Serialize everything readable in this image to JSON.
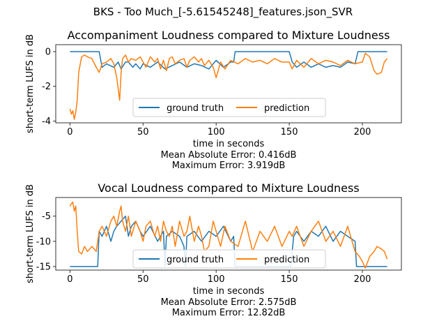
{
  "figure": {
    "suptitle": "BKS - Too Much_[-5.61545248]_features.json_SVR"
  },
  "colors": {
    "ground_truth": "#1f77b4",
    "prediction": "#ff7f0e"
  },
  "chart_data": [
    {
      "type": "line",
      "title": "Accompaniment Loudness compared to Mixture Loudness",
      "xlabel": "time in seconds",
      "ylabel": "short-term LUFS in dB",
      "xlim": [
        -9.7,
        226.7
      ],
      "ylim": [
        -4.1,
        0.4
      ],
      "xticks": [
        0,
        50,
        100,
        150,
        200
      ],
      "yticks": [
        0,
        -2,
        -4
      ],
      "legend": {
        "placement": "lower-center",
        "entries": [
          "ground truth",
          "prediction"
        ]
      },
      "stats": [
        "Mean Absolute Error: 0.416dB",
        "Maximum Error: 3.919dB"
      ],
      "series": [
        {
          "name": "ground truth",
          "color": "#1f77b4",
          "x": [
            0,
            5,
            10,
            15,
            18,
            20,
            22,
            25,
            30,
            33,
            35,
            38,
            40,
            43,
            45,
            48,
            50,
            55,
            60,
            65,
            70,
            75,
            80,
            85,
            90,
            95,
            100,
            105,
            110,
            112,
            113,
            120,
            130,
            140,
            150,
            152,
            155,
            160,
            165,
            170,
            175,
            180,
            185,
            190,
            195,
            197,
            200,
            205,
            210,
            217
          ],
          "y": [
            0,
            0,
            0,
            0,
            0,
            0,
            -0.9,
            -0.7,
            -0.9,
            -0.6,
            -1.0,
            -0.6,
            -0.6,
            -0.9,
            -0.7,
            -1.0,
            -0.7,
            -0.9,
            -0.6,
            -1.0,
            -0.8,
            -0.6,
            -0.9,
            -0.7,
            -0.8,
            -1.0,
            -0.5,
            -0.9,
            -0.6,
            -0.6,
            0,
            0,
            0,
            0,
            0,
            -0.6,
            -0.9,
            -0.6,
            -0.9,
            -0.7,
            -0.9,
            -0.8,
            -0.9,
            -0.6,
            -0.7,
            0,
            0,
            0,
            0,
            0
          ]
        },
        {
          "name": "prediction",
          "color": "#ff7f0e",
          "x": [
            0,
            1,
            2,
            3,
            4,
            5,
            6,
            8,
            10,
            12,
            15,
            18,
            20,
            22,
            25,
            28,
            30,
            32,
            34,
            35,
            36,
            38,
            40,
            42,
            45,
            48,
            50,
            52,
            55,
            58,
            60,
            62,
            64,
            66,
            68,
            70,
            72,
            75,
            78,
            80,
            82,
            85,
            88,
            90,
            92,
            95,
            98,
            100,
            103,
            106,
            110,
            115,
            120,
            125,
            130,
            135,
            140,
            145,
            150,
            152,
            155,
            160,
            165,
            170,
            175,
            180,
            185,
            190,
            195,
            200,
            202,
            205,
            208,
            210,
            213,
            215,
            217
          ],
          "y": [
            -3.3,
            -3.6,
            -3.4,
            -3.9,
            -3.5,
            -2.8,
            -1.2,
            -0.3,
            -0.2,
            -0.3,
            -0.4,
            -0.9,
            -1.2,
            -0.7,
            -0.6,
            -0.4,
            -0.7,
            -1.5,
            -2.8,
            -1.2,
            -0.4,
            -0.2,
            -0.6,
            -0.4,
            -0.5,
            -0.3,
            -0.6,
            -0.9,
            -0.3,
            -0.6,
            -0.4,
            -1.0,
            -0.5,
            -1.1,
            -0.4,
            -0.3,
            -0.7,
            -0.5,
            -0.4,
            -0.9,
            -0.5,
            -0.3,
            -0.6,
            -0.4,
            -0.8,
            -0.5,
            -0.9,
            -1.5,
            -0.6,
            -1.0,
            -0.5,
            -0.7,
            -0.4,
            -0.6,
            -0.5,
            -0.7,
            -0.4,
            -0.6,
            -0.6,
            -1.0,
            -0.5,
            -0.9,
            -0.4,
            -0.7,
            -0.5,
            -0.6,
            -0.8,
            -0.5,
            -0.7,
            -0.6,
            -0.1,
            -0.3,
            -1.1,
            -1.3,
            -1.2,
            -0.6,
            -0.4
          ]
        }
      ]
    },
    {
      "type": "line",
      "title": "Vocal Loudness compared to Mixture Loudness",
      "xlabel": "time in seconds",
      "ylabel": "short-term LUFS in dB",
      "xlim": [
        -9.7,
        226.7
      ],
      "ylim": [
        -15.7,
        -1.3
      ],
      "xticks": [
        0,
        50,
        100,
        150,
        200
      ],
      "yticks": [
        -5,
        -10,
        -15
      ],
      "legend": {
        "placement": "lower-center",
        "entries": [
          "ground truth",
          "prediction"
        ]
      },
      "stats": [
        "Mean Absolute Error: 2.575dB",
        "Maximum Error: 12.82dB"
      ],
      "series": [
        {
          "name": "ground truth",
          "color": "#1f77b4",
          "x": [
            0,
            5,
            10,
            15,
            18,
            19,
            20,
            22,
            25,
            28,
            30,
            32,
            35,
            38,
            40,
            42,
            45,
            48,
            50,
            55,
            60,
            64,
            65,
            66,
            70,
            75,
            78,
            79,
            80,
            85,
            90,
            95,
            100,
            105,
            110,
            112,
            113,
            120,
            130,
            140,
            150,
            151,
            153,
            155,
            160,
            165,
            170,
            175,
            180,
            185,
            190,
            195,
            196,
            197,
            200,
            205,
            210,
            217
          ],
          "y": [
            -15,
            -15,
            -15,
            -15,
            -15,
            -15,
            -8,
            -9,
            -7,
            -10,
            -8,
            -7,
            -6,
            -5,
            -9,
            -7,
            -6,
            -8,
            -9,
            -7,
            -10,
            -8,
            -15,
            -9,
            -8,
            -9,
            -11,
            -15,
            -9,
            -8,
            -10,
            -8,
            -9,
            -7,
            -10,
            -9,
            -15,
            -15,
            -15,
            -15,
            -15,
            -15,
            -9,
            -8,
            -10,
            -8,
            -9,
            -7,
            -10,
            -8,
            -9,
            -10,
            -15,
            -15,
            -15,
            -15,
            -15,
            -15
          ]
        },
        {
          "name": "prediction",
          "color": "#ff7f0e",
          "x": [
            0,
            1,
            2,
            3,
            4,
            5,
            6,
            8,
            10,
            12,
            15,
            18,
            20,
            22,
            25,
            28,
            30,
            32,
            34,
            35,
            36,
            38,
            40,
            42,
            45,
            48,
            50,
            52,
            55,
            58,
            60,
            62,
            64,
            66,
            68,
            70,
            72,
            75,
            78,
            80,
            82,
            85,
            88,
            90,
            92,
            95,
            98,
            100,
            103,
            106,
            110,
            115,
            120,
            125,
            130,
            135,
            140,
            145,
            150,
            152,
            155,
            160,
            165,
            170,
            175,
            180,
            185,
            190,
            195,
            198,
            200,
            202,
            205,
            208,
            210,
            213,
            215,
            217
          ],
          "y": [
            -3,
            -2.5,
            -2.2,
            -4,
            -3,
            -8,
            -12,
            -12.5,
            -11,
            -12,
            -11,
            -12,
            -8,
            -7,
            -9,
            -6,
            -5,
            -7,
            -4,
            -3,
            -6,
            -8,
            -5,
            -9,
            -6,
            -8,
            -10,
            -7,
            -6,
            -9,
            -7,
            -10,
            -6,
            -8,
            -9,
            -7,
            -11,
            -6,
            -9,
            -8,
            -5,
            -10,
            -7,
            -9,
            -12,
            -11,
            -6,
            -8,
            -11,
            -7,
            -10,
            -11,
            -6,
            -12,
            -8,
            -10,
            -7,
            -11,
            -8,
            -9,
            -7,
            -11,
            -8,
            -6,
            -10,
            -8,
            -11,
            -7,
            -12,
            -13,
            -14,
            -15.3,
            -13,
            -12,
            -11,
            -11.5,
            -12,
            -13.5
          ]
        }
      ]
    }
  ]
}
